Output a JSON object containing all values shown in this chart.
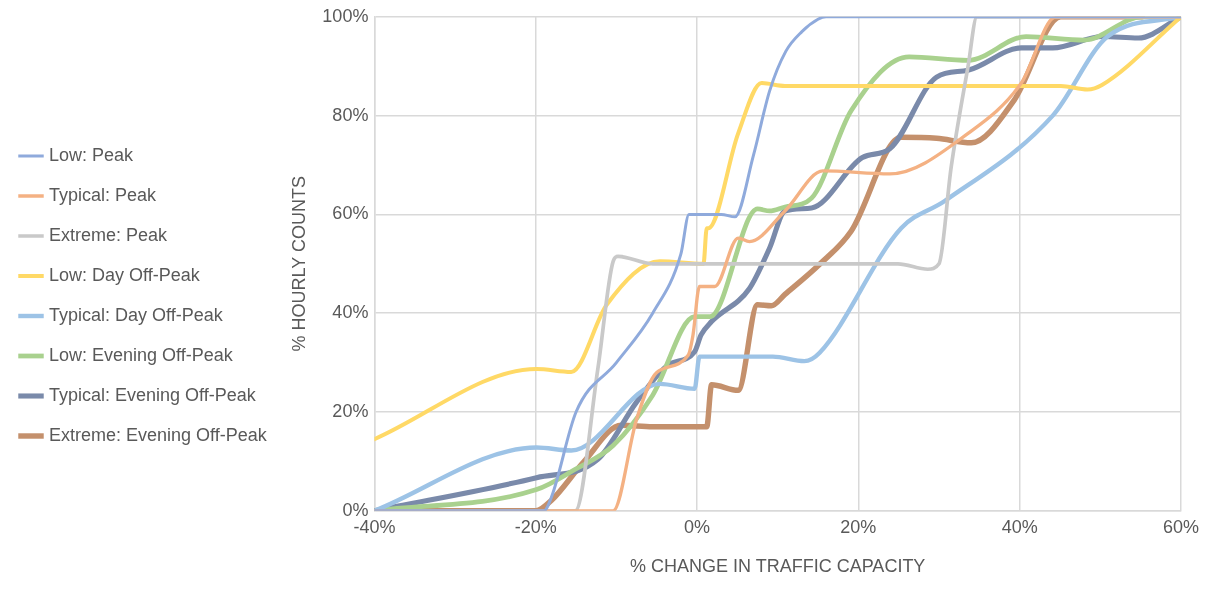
{
  "chart_data": {
    "type": "line",
    "xlabel": "% CHANGE IN TRAFFIC CAPACITY",
    "ylabel": "% HOURLY COUNTS",
    "xlim": [
      -40,
      60
    ],
    "ylim": [
      0,
      100
    ],
    "xticks": [
      {
        "value": -40,
        "label": "-40%"
      },
      {
        "value": -20,
        "label": "-20%"
      },
      {
        "value": 0,
        "label": "0%"
      },
      {
        "value": 20,
        "label": "20%"
      },
      {
        "value": 40,
        "label": "40%"
      },
      {
        "value": 60,
        "label": "60%"
      }
    ],
    "yticks": [
      {
        "value": 0,
        "label": "0%"
      },
      {
        "value": 20,
        "label": "20%"
      },
      {
        "value": 40,
        "label": "40%"
      },
      {
        "value": 60,
        "label": "60%"
      },
      {
        "value": 80,
        "label": "80%"
      },
      {
        "value": 100,
        "label": "100%"
      }
    ],
    "grid": true,
    "legend": "left",
    "marker": "none",
    "line_style": "solid",
    "series": [
      {
        "name": "Low: Peak",
        "color": "#8faadc",
        "x": [
          -40,
          -19,
          -18,
          -15,
          -10,
          -5.5,
          -2,
          -1,
          3,
          4.7,
          7,
          9,
          11,
          13,
          15,
          16,
          60
        ],
        "values": [
          0,
          0,
          3,
          20,
          30,
          40,
          52,
          60,
          60,
          59.5,
          72,
          85,
          93,
          97,
          99.5,
          100,
          100
        ]
      },
      {
        "name": "Typical: Peak",
        "color": "#f4b183",
        "x": [
          -40,
          -10.4,
          -7.5,
          -5,
          -1.1,
          -0.5,
          0.3,
          2.2,
          5.1,
          6.5,
          10.9,
          15.6,
          23.9,
          33.6,
          40.2,
          44.5,
          60
        ],
        "values": [
          0,
          0,
          18.5,
          28,
          31.5,
          35.6,
          45.4,
          45.4,
          55.2,
          54.5,
          60.7,
          68.8,
          68.2,
          76.4,
          86.6,
          100,
          100
        ]
      },
      {
        "name": "Extreme: Peak",
        "color": "#c9c9c9",
        "x": [
          -40,
          -15.1,
          -12.3,
          -10.4,
          -9.8,
          -5.5,
          24.9,
          28.6,
          30,
          31.5,
          33.6,
          34.7,
          60
        ],
        "values": [
          0,
          0,
          28.7,
          50.5,
          51.5,
          50,
          50,
          48.9,
          50,
          69.5,
          90,
          100,
          100
        ]
      },
      {
        "name": "Low: Day Off-Peak",
        "color": "#ffd966",
        "x": [
          -40,
          -19.9,
          -15.6,
          -11.2,
          -4.6,
          0.8,
          1.2,
          1.4,
          5.1,
          8,
          10.9,
          45.1,
          48.4,
          50.2,
          60
        ],
        "values": [
          14.5,
          28.7,
          28.1,
          41.7,
          50.5,
          50,
          57.2,
          57.2,
          76.4,
          86.6,
          86,
          86,
          85.3,
          86.2,
          100
        ]
      },
      {
        "name": "Typical: Day Off-Peak",
        "color": "#9dc3e6",
        "x": [
          -40,
          -19.9,
          -15.6,
          -4.6,
          -0.3,
          0.3,
          9.4,
          13.3,
          15.2,
          25.3,
          30.7,
          44.1,
          50.9,
          60
        ],
        "values": [
          0,
          12.8,
          12.2,
          25.7,
          24.7,
          31.2,
          31.2,
          30.3,
          32,
          57.2,
          62.7,
          80,
          96,
          100
        ]
      },
      {
        "name": "Low: Evening Off-Peak",
        "color": "#a9d18e",
        "x": [
          -40,
          -19.9,
          -15.1,
          -10.4,
          -5.5,
          -0.3,
          1.6,
          7.5,
          9,
          10.9,
          14.2,
          19.1,
          26.3,
          33.6,
          40.8,
          48,
          55.2,
          60
        ],
        "values": [
          0,
          4.3,
          8.4,
          13.2,
          23.4,
          39.3,
          39.3,
          61.1,
          60.7,
          61.5,
          63.3,
          81,
          91.9,
          91.2,
          96,
          95.3,
          100,
          100
        ]
      },
      {
        "name": "Typical: Evening Off-Peak",
        "color": "#7a8aaa",
        "x": [
          -40,
          -19.9,
          -12.3,
          -7.5,
          -3.6,
          -0.3,
          0.5,
          1.8,
          6.5,
          9,
          10.9,
          14.2,
          20.5,
          23.9,
          29.7,
          33.6,
          40.2,
          44.1,
          50.3,
          54.7,
          60
        ],
        "values": [
          0,
          6.7,
          10.4,
          22,
          29.5,
          32.2,
          35.6,
          38.3,
          45,
          53.2,
          60.7,
          61.3,
          71.5,
          73.3,
          87.8,
          89.2,
          93.7,
          93.7,
          96,
          95.7,
          100
        ]
      },
      {
        "name": "Extreme: Evening Off-Peak",
        "color": "#c4906c",
        "x": [
          -40,
          -20,
          -18,
          -14.1,
          -9.4,
          -5.5,
          1.2,
          1.8,
          5.1,
          7.5,
          9.2,
          10.9,
          15.2,
          19.1,
          25.3,
          29.7,
          34,
          39.3,
          45.1,
          55.2
        ],
        "values": [
          0,
          0,
          2.2,
          9.8,
          17.3,
          17,
          17,
          25.5,
          24.4,
          41.7,
          41.5,
          43.8,
          49.9,
          56.6,
          75.6,
          75.4,
          74.5,
          83.1,
          100,
          100
        ]
      }
    ]
  }
}
